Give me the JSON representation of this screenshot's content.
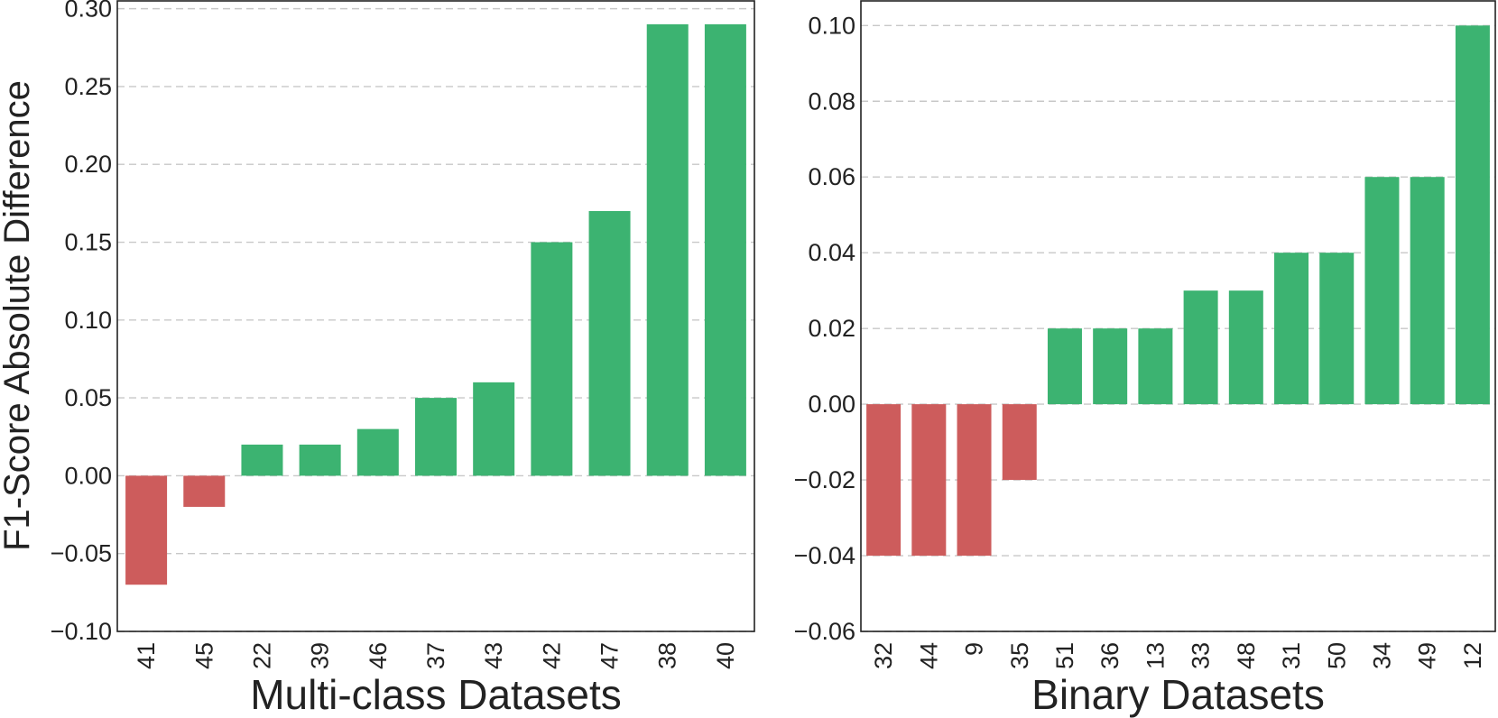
{
  "colors": {
    "positive": "#3cb371",
    "negative": "#cd5c5c",
    "grid": "#c8c8c8",
    "text": "#222222"
  },
  "chart_data": [
    {
      "type": "bar",
      "title": "",
      "xlabel": "Multi-class Datasets",
      "ylabel": "F1-Score Absolute Difference",
      "categories": [
        "41",
        "45",
        "22",
        "39",
        "46",
        "37",
        "43",
        "42",
        "47",
        "38",
        "40"
      ],
      "values": [
        -0.07,
        -0.02,
        0.02,
        0.02,
        0.03,
        0.05,
        0.06,
        0.15,
        0.17,
        0.29,
        0.29
      ],
      "ylim": [
        -0.1,
        0.305
      ],
      "yticks": [
        -0.1,
        -0.05,
        0.0,
        0.05,
        0.1,
        0.15,
        0.2,
        0.25,
        0.3
      ],
      "ytick_labels": [
        "−0.10",
        "−0.05",
        "0.00",
        "0.05",
        "0.10",
        "0.15",
        "0.20",
        "0.25",
        "0.30"
      ],
      "grid": true
    },
    {
      "type": "bar",
      "title": "",
      "xlabel": "Binary Datasets",
      "ylabel": "",
      "categories": [
        "32",
        "44",
        "9",
        "35",
        "51",
        "36",
        "13",
        "33",
        "48",
        "31",
        "50",
        "34",
        "49",
        "12"
      ],
      "values": [
        -0.04,
        -0.04,
        -0.04,
        -0.02,
        0.02,
        0.02,
        0.02,
        0.03,
        0.03,
        0.04,
        0.04,
        0.06,
        0.06,
        0.1
      ],
      "ylim": [
        -0.06,
        0.1065
      ],
      "yticks": [
        -0.06,
        -0.04,
        -0.02,
        0.0,
        0.02,
        0.04,
        0.06,
        0.08,
        0.1
      ],
      "ytick_labels": [
        "−0.06",
        "−0.04",
        "−0.02",
        "0.00",
        "0.02",
        "0.04",
        "0.06",
        "0.08",
        "0.10"
      ],
      "grid": true
    }
  ]
}
